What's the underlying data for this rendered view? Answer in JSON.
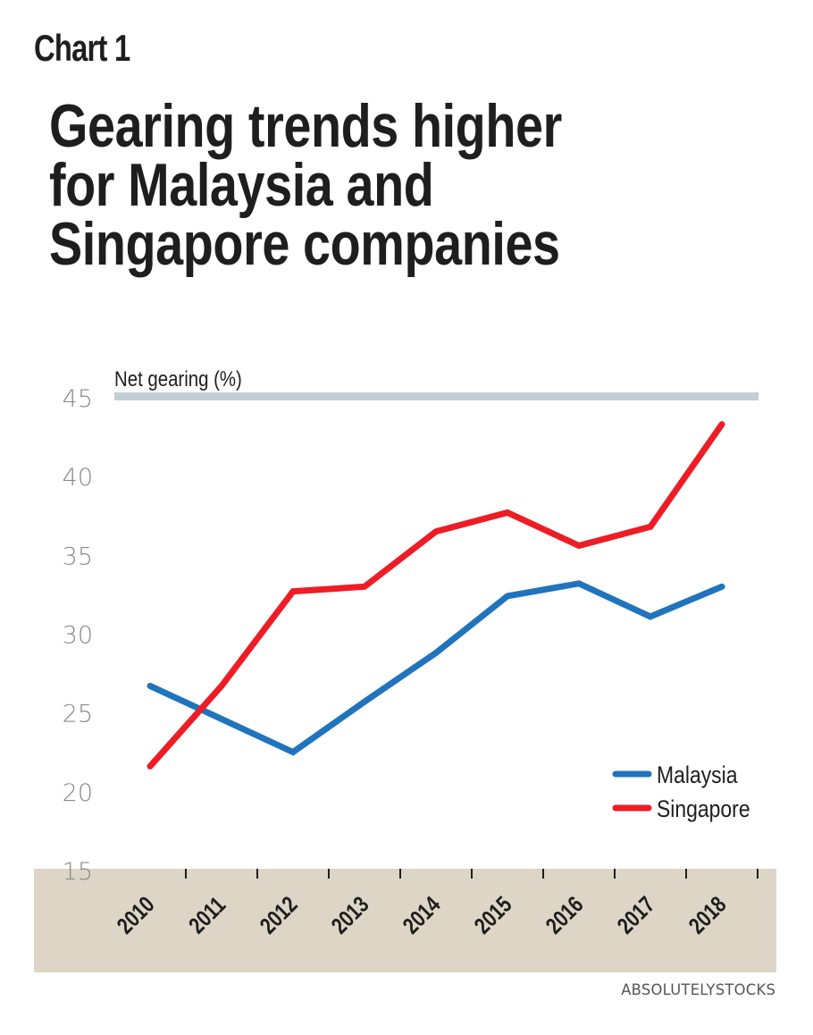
{
  "header": {
    "kicker": "Chart 1",
    "title_lines": [
      "Gearing trends higher",
      "for Malaysia and",
      "Singapore companies"
    ]
  },
  "source": "ABSOLUTELYSTOCKS",
  "colors": {
    "malaysia": "#1f74bd",
    "singapore": "#ee1c25",
    "top_rule": "#c1ced6",
    "axis_band": "#ddd5c6",
    "text": "#1e1e1e",
    "tick_label": "#8a8a8a"
  },
  "chart_data": {
    "type": "line",
    "title": "Gearing trends higher for Malaysia and Singapore companies",
    "ylabel": "Net gearing (%)",
    "xlabel": "",
    "x": [
      "2010",
      "2011",
      "2012",
      "2013",
      "2014",
      "2015",
      "2016",
      "2017",
      "2018"
    ],
    "ylim": [
      15,
      45
    ],
    "yticks": [
      15,
      20,
      25,
      30,
      35,
      40,
      45
    ],
    "grid": false,
    "legend_position": "bottom-right",
    "series": [
      {
        "name": "Malaysia",
        "color": "#1f74bd",
        "values": [
          26.6,
          24.5,
          22.4,
          25.6,
          28.7,
          32.3,
          33.1,
          31.0,
          32.9
        ]
      },
      {
        "name": "Singapore",
        "color": "#ee1c25",
        "values": [
          21.5,
          26.6,
          32.6,
          32.9,
          36.4,
          37.6,
          35.5,
          36.7,
          43.2
        ]
      }
    ]
  }
}
